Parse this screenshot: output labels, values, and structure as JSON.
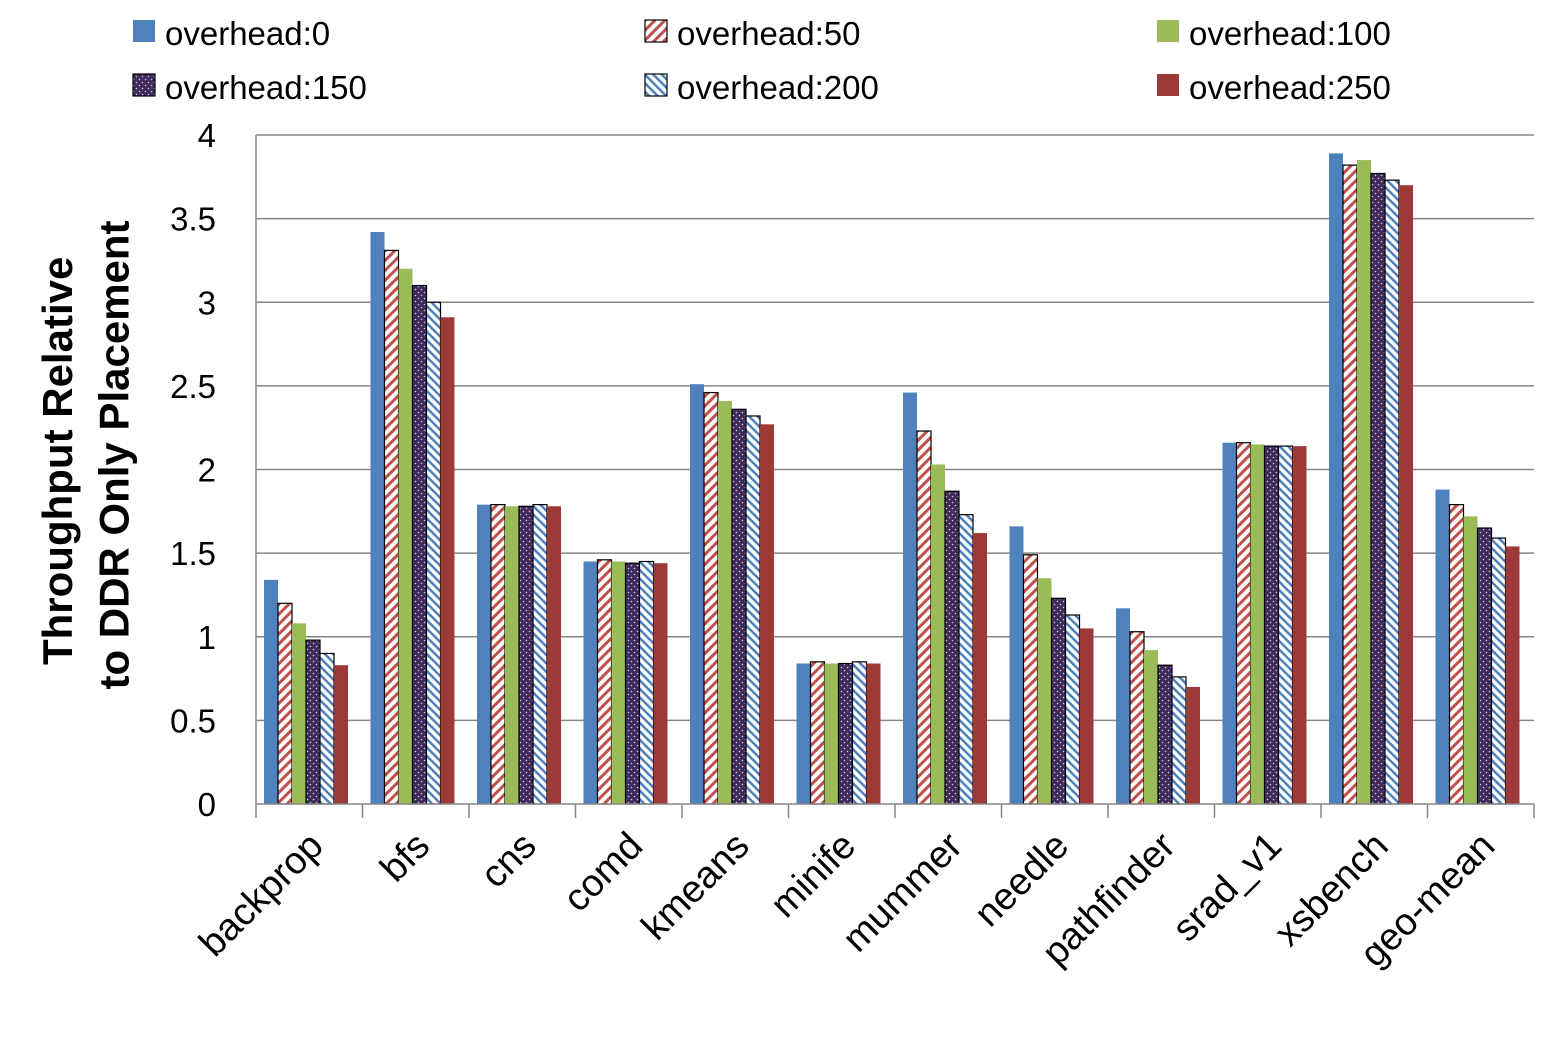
{
  "chart_data": {
    "type": "bar",
    "ylabel_lines": [
      "Throughput Relative",
      "to DDR Only Placement"
    ],
    "xlabel": "",
    "ylim": [
      0,
      4
    ],
    "yticks": [
      "0",
      "0.5",
      "1",
      "1.5",
      "2",
      "2.5",
      "3",
      "3.5",
      "4"
    ],
    "grid": true,
    "legend_position": "top",
    "categories": [
      "backprop",
      "bfs",
      "cns",
      "comd",
      "kmeans",
      "minife",
      "mummer",
      "needle",
      "pathfinder",
      "srad_v1",
      "xsbench",
      "geo-mean"
    ],
    "series": [
      {
        "name": "overhead:0",
        "color": "#4f81bd",
        "pattern": "solid",
        "values": [
          1.34,
          3.42,
          1.79,
          1.45,
          2.51,
          0.84,
          2.46,
          1.66,
          1.17,
          2.16,
          3.89,
          1.88
        ]
      },
      {
        "name": "overhead:50",
        "color": "#c0504d",
        "pattern": "diagonal-stripes",
        "values": [
          1.2,
          3.31,
          1.79,
          1.46,
          2.46,
          0.85,
          2.23,
          1.49,
          1.03,
          2.16,
          3.82,
          1.79
        ]
      },
      {
        "name": "overhead:100",
        "color": "#9bbb59",
        "pattern": "solid",
        "values": [
          1.08,
          3.2,
          1.78,
          1.45,
          2.41,
          0.84,
          2.03,
          1.35,
          0.92,
          2.15,
          3.85,
          1.72
        ]
      },
      {
        "name": "overhead:150",
        "color": "#3f2b5c",
        "pattern": "dots",
        "values": [
          0.98,
          3.1,
          1.78,
          1.44,
          2.36,
          0.84,
          1.87,
          1.23,
          0.83,
          2.14,
          3.77,
          1.65
        ]
      },
      {
        "name": "overhead:200",
        "color": "#4f81bd",
        "pattern": "diagonal-stripes",
        "values": [
          0.9,
          3.0,
          1.79,
          1.45,
          2.32,
          0.85,
          1.73,
          1.13,
          0.76,
          2.14,
          3.73,
          1.59
        ]
      },
      {
        "name": "overhead:250",
        "color": "#9c3a38",
        "pattern": "solid",
        "values": [
          0.83,
          2.91,
          1.78,
          1.44,
          2.27,
          0.84,
          1.62,
          1.05,
          0.7,
          2.14,
          3.7,
          1.54
        ]
      }
    ]
  }
}
